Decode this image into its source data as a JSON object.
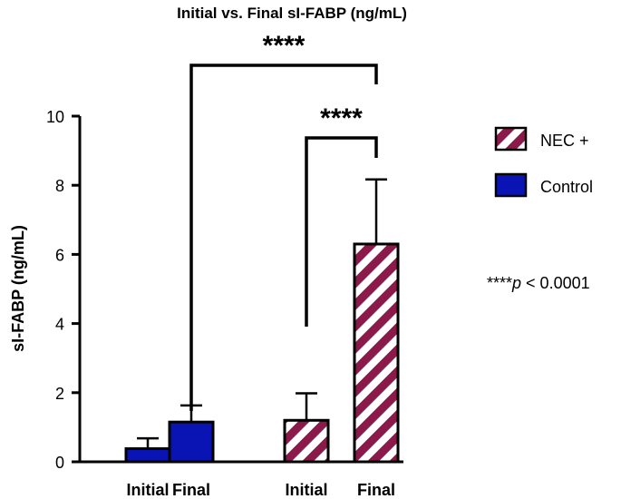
{
  "chart_data": {
    "type": "bar",
    "title": "Initial vs. Final sI-FABP (ng/mL)",
    "ylabel": "sI-FABP (ng/mL)",
    "xlabel": "",
    "ylim": [
      0,
      10
    ],
    "yticks": [
      0,
      2,
      4,
      6,
      8,
      10
    ],
    "grid": false,
    "legend_position": "right",
    "bars": [
      {
        "label": "Initial",
        "group": "Control",
        "value": 0.38,
        "error": 0.3
      },
      {
        "label": "Final",
        "group": "Control",
        "value": 1.15,
        "error": 0.48
      },
      {
        "label": "Initial",
        "group": "NEC +",
        "value": 1.2,
        "error": 0.78
      },
      {
        "label": "Final",
        "group": "NEC +",
        "value": 6.3,
        "error": 1.87
      }
    ],
    "legend": [
      {
        "name": "NEC +",
        "pattern": "stripes",
        "color": "#8b1a4a"
      },
      {
        "name": "Control",
        "pattern": "solid",
        "color": "#0a14b4"
      }
    ],
    "significance": [
      {
        "from": 1,
        "to": 3,
        "label": "****"
      },
      {
        "from": 2,
        "to": 3,
        "label": "****"
      }
    ],
    "annotation": {
      "stars": "****",
      "p": "p",
      "rest": " < 0.0001"
    }
  }
}
